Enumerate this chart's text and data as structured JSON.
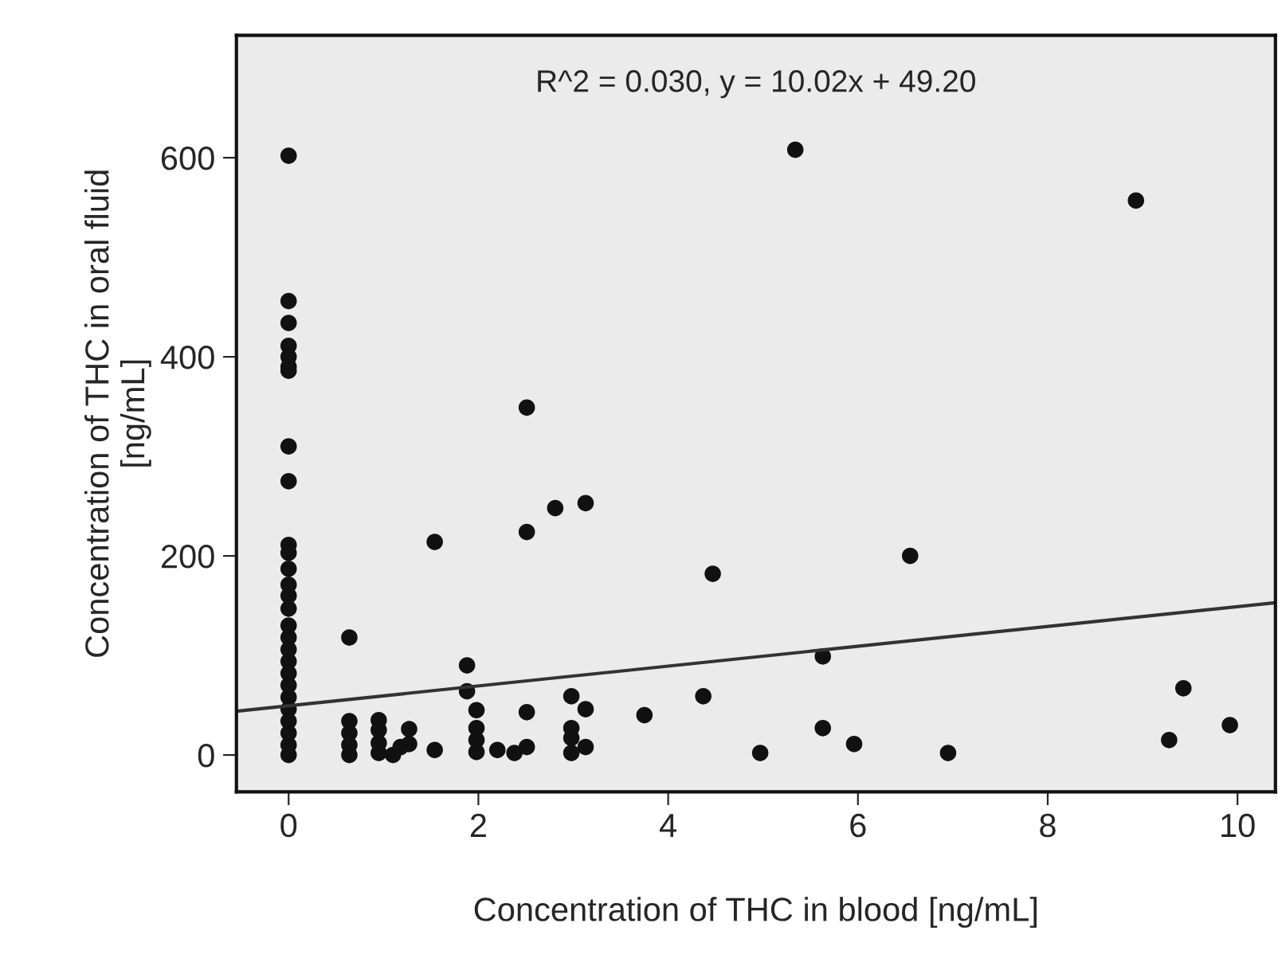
{
  "chart_data": {
    "type": "scatter",
    "xlabel": "Concentration of THC in blood [ng/mL]",
    "ylabel": "Concentration of THC in oral fluid\n[ng/mL]",
    "annotations": [
      "R^2 = 0.030, y = 10.02x + 49.20"
    ],
    "xlim": [
      -0.55,
      10.4
    ],
    "ylim": [
      -37,
      723
    ],
    "xticks": [
      0,
      2,
      4,
      6,
      8,
      10
    ],
    "yticks": [
      0,
      200,
      400,
      600
    ],
    "grid": false,
    "legend": false,
    "marker": "circle",
    "series": [
      {
        "color": "#111111",
        "x": [
          0,
          0,
          0,
          0,
          0,
          0,
          0,
          0,
          0,
          0,
          0,
          0,
          0,
          0,
          0,
          0,
          0,
          0,
          0,
          0,
          0,
          0,
          0,
          0,
          0,
          0,
          0,
          0.64,
          0.64,
          0.64,
          0.64,
          0.64,
          0.95,
          0.95,
          0.95,
          0.95,
          1.1,
          1.18,
          1.27,
          1.27,
          1.54,
          1.54,
          1.88,
          1.88,
          1.98,
          1.98,
          1.98,
          1.98,
          2.2,
          2.38,
          2.51,
          2.51,
          2.51,
          2.51,
          2.81,
          2.98,
          2.98,
          2.98,
          2.98,
          3.13,
          3.13,
          3.13,
          3.75,
          4.37,
          4.47,
          4.97,
          5.34,
          5.63,
          5.63,
          5.96,
          6.55,
          6.95,
          8.93,
          9.28,
          9.43,
          9.92
        ],
        "values": [
          602,
          456,
          434,
          411,
          400,
          390,
          386,
          310,
          275,
          211,
          203,
          187,
          171,
          160,
          147,
          130,
          118,
          106,
          94,
          82,
          70,
          58,
          46,
          34,
          22,
          10,
          0,
          118,
          34,
          22,
          10,
          0,
          35,
          25,
          12,
          2,
          0,
          8,
          26,
          11,
          5,
          214,
          90,
          64,
          45,
          27,
          15,
          3,
          5,
          2,
          8,
          43,
          224,
          349,
          248,
          59,
          27,
          17,
          2,
          253,
          46,
          8,
          40,
          59,
          182,
          2,
          608,
          99,
          27,
          11,
          200,
          2,
          557,
          15,
          67,
          30
        ]
      },
      {
        "type": "line",
        "color": "#333333",
        "line_style": "solid",
        "marker": "none",
        "x": [
          -0.55,
          10.4
        ],
        "values": [
          44,
          153
        ]
      }
    ]
  }
}
